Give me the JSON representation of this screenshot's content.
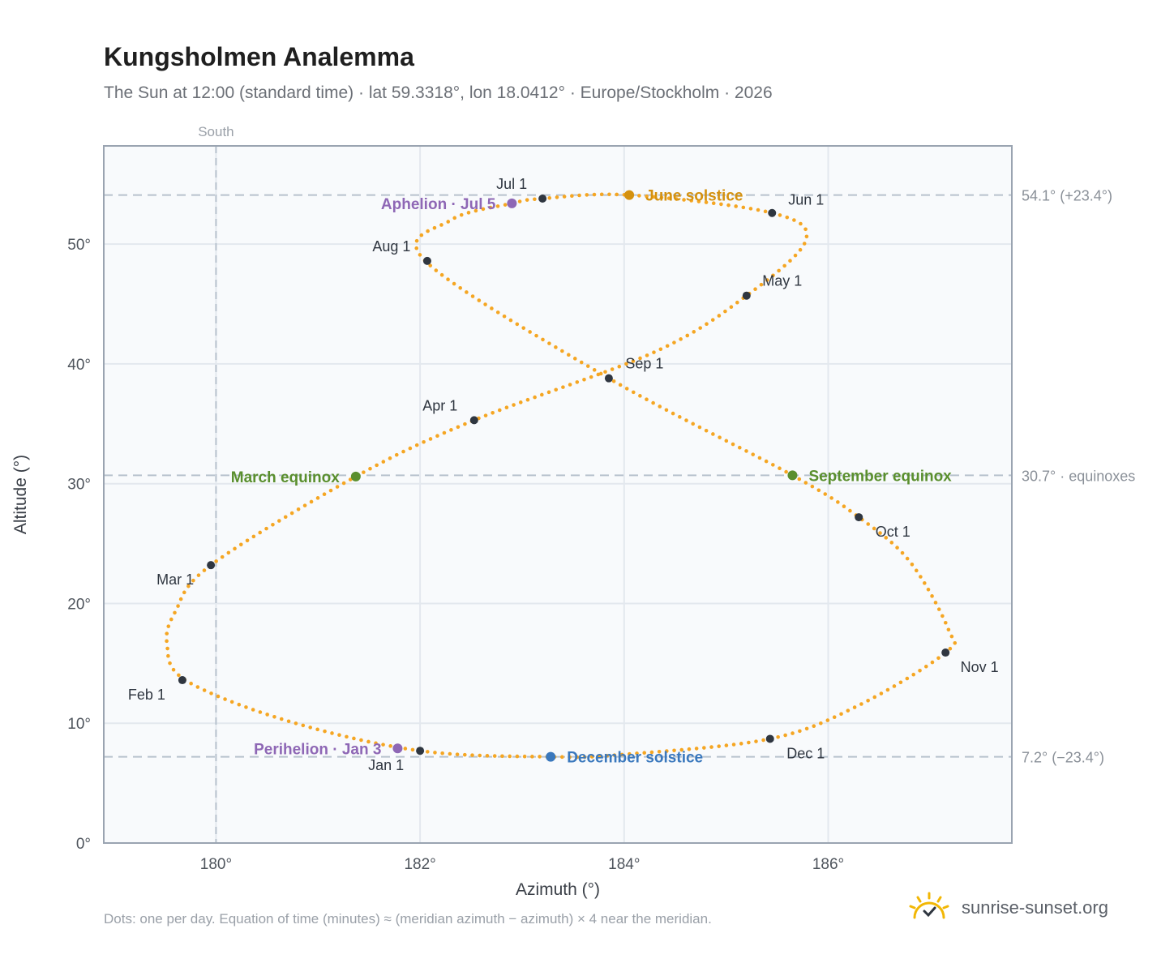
{
  "header": {
    "title": "Kungsholmen Analemma",
    "subtitle": "The Sun at 12:00 (standard time) · lat 59.3318°, lon 18.0412° · Europe/Stockholm · 2026"
  },
  "footer": {
    "note": "Dots: one per day. Equation of time (minutes) ≈ (meridian azimuth − azimuth) × 4 near the meridian.",
    "brand": "sunrise-sunset.org"
  },
  "colors": {
    "curve": "#f5a623",
    "month_dot": "#2f3640",
    "equinox": "#5a8f2e",
    "june_solstice": "#d4910f",
    "december_solstice": "#3a78bd",
    "apsis": "#8e67b5",
    "reference_line": "#b7c2cd",
    "grid": "#e3e8ee",
    "plot_bg": "#f8fafc",
    "frame": "#9aa4b1"
  },
  "chart_data": {
    "type": "scatter",
    "title": "Kungsholmen Analemma",
    "xlabel": "Azimuth (°)",
    "ylabel": "Altitude (°)",
    "xlim": [
      178.9,
      187.8
    ],
    "ylim": [
      0,
      58.2
    ],
    "xticks": [
      180,
      182,
      184,
      186
    ],
    "xtick_labels": [
      "180°",
      "182°",
      "184°",
      "186°"
    ],
    "yticks": [
      0,
      10,
      20,
      30,
      40,
      50
    ],
    "ytick_labels": [
      "0°",
      "10°",
      "20°",
      "30°",
      "40°",
      "50°"
    ],
    "grid": true,
    "meridian": {
      "azimuth": 180,
      "label": "South"
    },
    "reference_lines": [
      {
        "altitude": 54.1,
        "label": "54.1° (+23.4°)"
      },
      {
        "altitude": 30.7,
        "label": "30.7° · equinoxes"
      },
      {
        "altitude": 7.2,
        "label": "7.2° (−23.4°)"
      }
    ],
    "daily_path_anchors": [
      {
        "azimuth": 182.0,
        "altitude": 7.7
      },
      {
        "azimuth": 180.7,
        "altitude": 10.2
      },
      {
        "azimuth": 179.7,
        "altitude": 13.6
      },
      {
        "azimuth": 179.52,
        "altitude": 16.6
      },
      {
        "azimuth": 179.6,
        "altitude": 19.3
      },
      {
        "azimuth": 179.95,
        "altitude": 23.2
      },
      {
        "azimuth": 181.37,
        "altitude": 30.6
      },
      {
        "azimuth": 182.53,
        "altitude": 35.3
      },
      {
        "azimuth": 184.3,
        "altitude": 41.0
      },
      {
        "azimuth": 185.2,
        "altitude": 45.7
      },
      {
        "azimuth": 185.78,
        "altitude": 50.3
      },
      {
        "azimuth": 185.45,
        "altitude": 52.6
      },
      {
        "azimuth": 184.05,
        "altitude": 54.1
      },
      {
        "azimuth": 183.2,
        "altitude": 53.8
      },
      {
        "azimuth": 182.9,
        "altitude": 53.4
      },
      {
        "azimuth": 182.3,
        "altitude": 52.0
      },
      {
        "azimuth": 182.05,
        "altitude": 48.6
      },
      {
        "azimuth": 183.85,
        "altitude": 38.8
      },
      {
        "azimuth": 185.65,
        "altitude": 30.7
      },
      {
        "azimuth": 186.3,
        "altitude": 27.2
      },
      {
        "azimuth": 186.8,
        "altitude": 23.5
      },
      {
        "azimuth": 187.18,
        "altitude": 17.8
      },
      {
        "azimuth": 187.15,
        "altitude": 15.9
      },
      {
        "azimuth": 186.3,
        "altitude": 11.5
      },
      {
        "azimuth": 185.43,
        "altitude": 8.7
      },
      {
        "azimuth": 184.0,
        "altitude": 7.4
      },
      {
        "azimuth": 183.28,
        "altitude": 7.2
      },
      {
        "azimuth": 182.0,
        "altitude": 7.7
      }
    ],
    "month_markers": [
      {
        "label": "Jan 1",
        "azimuth": 182.0,
        "altitude": 7.7
      },
      {
        "label": "Feb 1",
        "azimuth": 179.67,
        "altitude": 13.6
      },
      {
        "label": "Mar 1",
        "azimuth": 179.95,
        "altitude": 23.2
      },
      {
        "label": "Apr 1",
        "azimuth": 182.53,
        "altitude": 35.3
      },
      {
        "label": "May 1",
        "azimuth": 185.2,
        "altitude": 45.7
      },
      {
        "label": "Jun 1",
        "azimuth": 185.45,
        "altitude": 52.6
      },
      {
        "label": "Jul 1",
        "azimuth": 183.2,
        "altitude": 53.8
      },
      {
        "label": "Aug 1",
        "azimuth": 182.07,
        "altitude": 48.6
      },
      {
        "label": "Sep 1",
        "azimuth": 183.85,
        "altitude": 38.8
      },
      {
        "label": "Oct 1",
        "azimuth": 186.3,
        "altitude": 27.2
      },
      {
        "label": "Nov 1",
        "azimuth": 187.15,
        "altitude": 15.9
      },
      {
        "label": "Dec 1",
        "azimuth": 185.43,
        "altitude": 8.7
      }
    ],
    "events": [
      {
        "label": "March equinox",
        "azimuth": 181.37,
        "altitude": 30.6,
        "color_key": "equinox",
        "side": "left"
      },
      {
        "label": "September equinox",
        "azimuth": 185.65,
        "altitude": 30.7,
        "color_key": "equinox",
        "side": "right"
      },
      {
        "label": "June solstice",
        "azimuth": 184.05,
        "altitude": 54.1,
        "color_key": "june_solstice",
        "side": "right"
      },
      {
        "label": "December solstice",
        "azimuth": 183.28,
        "altitude": 7.2,
        "color_key": "december_solstice",
        "side": "right"
      },
      {
        "label": "Aphelion · Jul 5",
        "azimuth": 182.9,
        "altitude": 53.4,
        "color_key": "apsis",
        "side": "left"
      },
      {
        "label": "Perihelion · Jan 3",
        "azimuth": 181.78,
        "altitude": 7.9,
        "color_key": "apsis",
        "side": "left"
      }
    ]
  }
}
